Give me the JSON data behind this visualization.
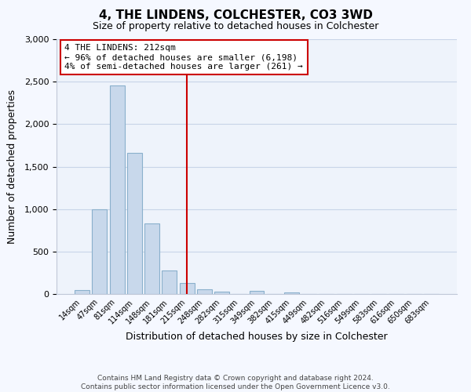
{
  "title": "4, THE LINDENS, COLCHESTER, CO3 3WD",
  "subtitle": "Size of property relative to detached houses in Colchester",
  "xlabel": "Distribution of detached houses by size in Colchester",
  "ylabel": "Number of detached properties",
  "bar_labels": [
    "14sqm",
    "47sqm",
    "81sqm",
    "114sqm",
    "148sqm",
    "181sqm",
    "215sqm",
    "248sqm",
    "282sqm",
    "315sqm",
    "349sqm",
    "382sqm",
    "415sqm",
    "449sqm",
    "482sqm",
    "516sqm",
    "549sqm",
    "583sqm",
    "616sqm",
    "650sqm",
    "683sqm"
  ],
  "bar_values": [
    50,
    1000,
    2460,
    1660,
    835,
    275,
    125,
    55,
    30,
    0,
    35,
    0,
    18,
    0,
    0,
    0,
    0,
    0,
    0,
    0,
    0
  ],
  "bar_color": "#c8d8eb",
  "bar_edge_color": "#8ab0cc",
  "vline_x": 6.0,
  "vline_color": "#cc0000",
  "annotation_title": "4 THE LINDENS: 212sqm",
  "annotation_line1": "← 96% of detached houses are smaller (6,198)",
  "annotation_line2": "4% of semi-detached houses are larger (261) →",
  "annotation_box_edge": "#cc0000",
  "ylim": [
    0,
    3000
  ],
  "yticks": [
    0,
    500,
    1000,
    1500,
    2000,
    2500,
    3000
  ],
  "footer_line1": "Contains HM Land Registry data © Crown copyright and database right 2024.",
  "footer_line2": "Contains public sector information licensed under the Open Government Licence v3.0.",
  "bg_color": "#f5f8ff",
  "plot_bg_color": "#eef3fb",
  "grid_color": "#c8d4e8"
}
